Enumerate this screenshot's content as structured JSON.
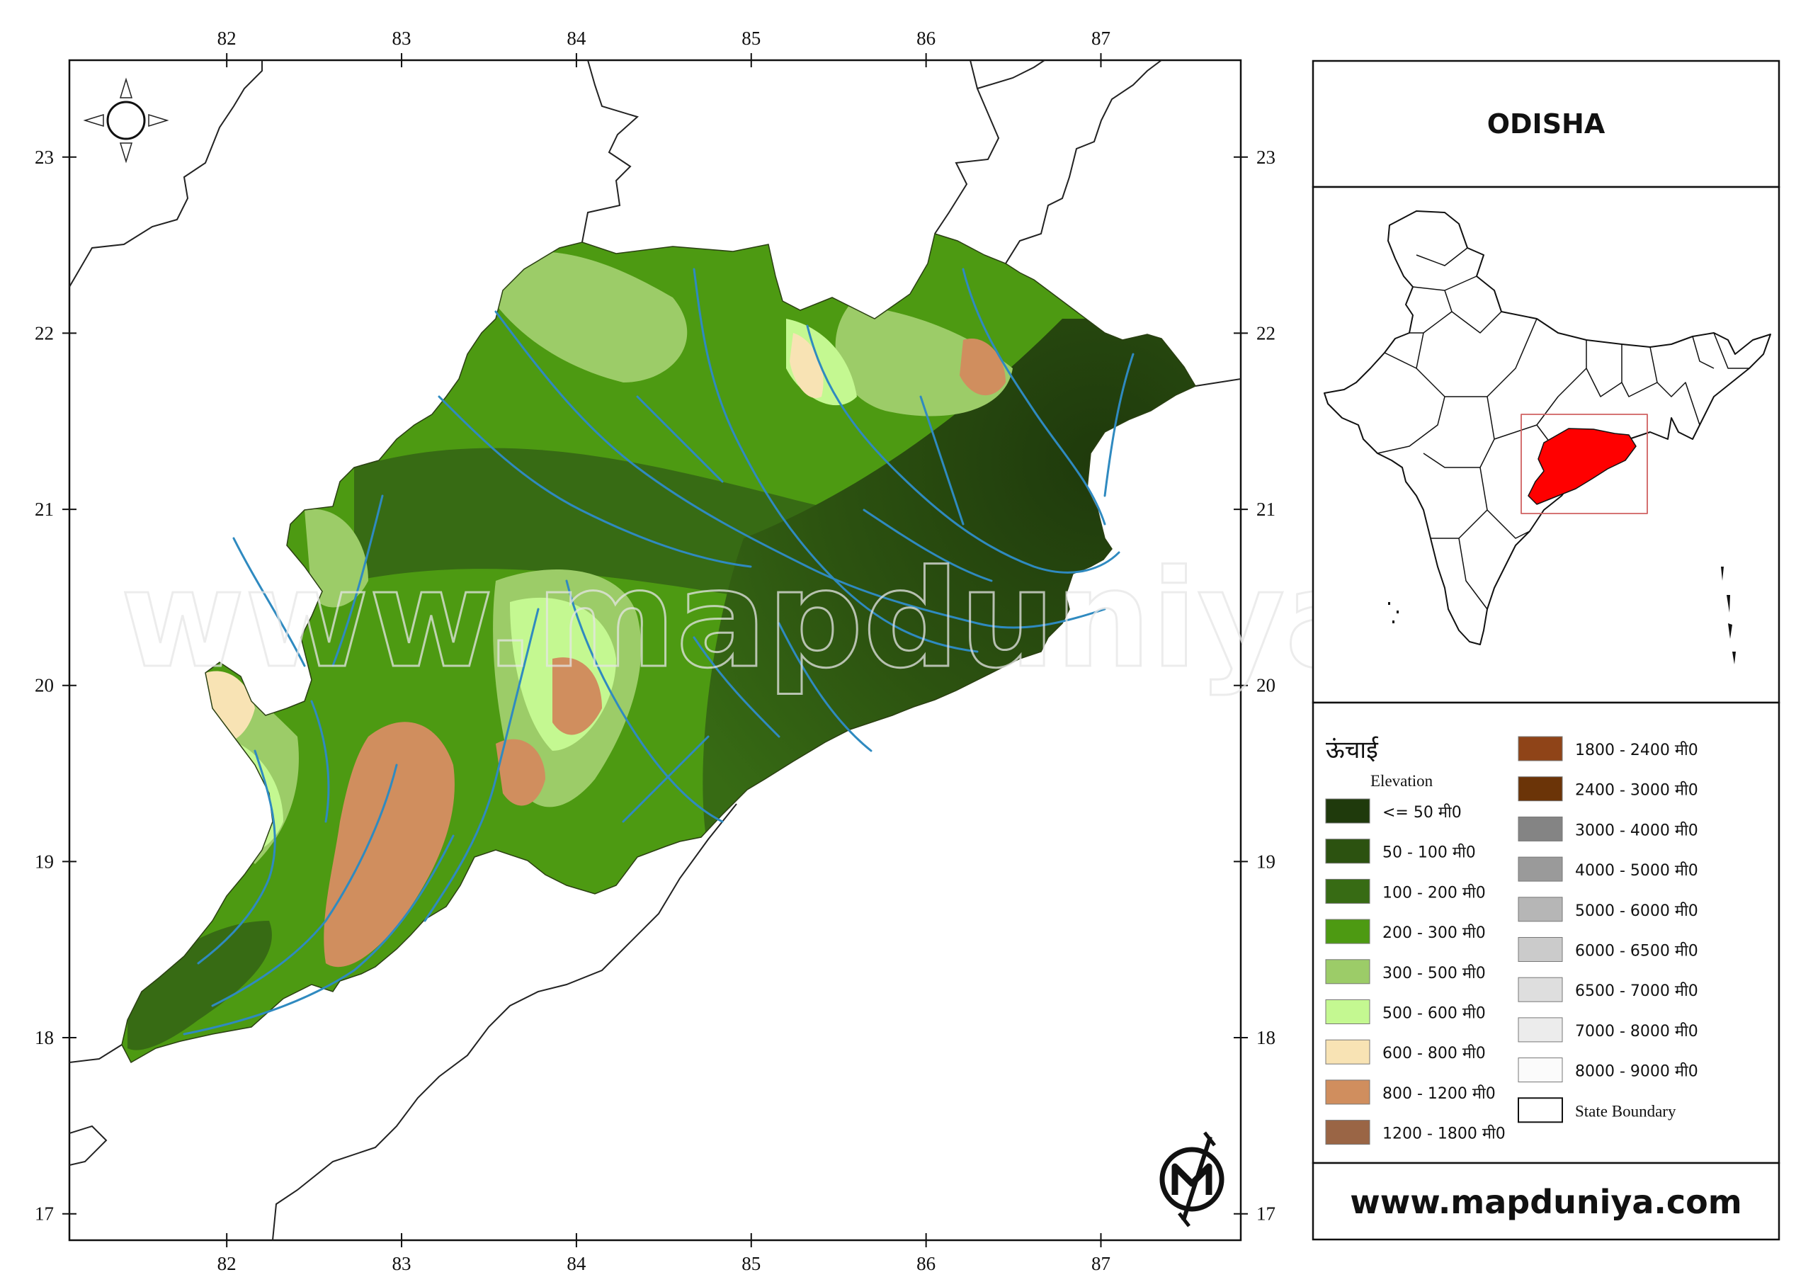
{
  "title": "ODISHA",
  "website": "www.mapduniya.com",
  "watermark": "www.mapduniya.com",
  "map": {
    "lon_ticks": [
      "82",
      "83",
      "84",
      "85",
      "86",
      "87"
    ],
    "lat_ticks": [
      "23",
      "22",
      "21",
      "20",
      "19",
      "18",
      "17"
    ],
    "lon_range": [
      81.1,
      87.8
    ],
    "lat_range": [
      16.85,
      23.55
    ],
    "river_color": "#2f8ac0",
    "state_highlight_color": "#ff0000"
  },
  "legend": {
    "title_hindi": "ऊंचाई",
    "subtitle": "Elevation",
    "items": [
      {
        "label": "<= 50 मी0",
        "color": "#1f3a0c"
      },
      {
        "label": "50 - 100 मी0",
        "color": "#2c5210"
      },
      {
        "label": "100 - 200 मी0",
        "color": "#376b14"
      },
      {
        "label": "200 - 300 मी0",
        "color": "#4d9a12"
      },
      {
        "label": "300 - 500 मी0",
        "color": "#9ccc68"
      },
      {
        "label": "500 - 600 मी0",
        "color": "#c4f891"
      },
      {
        "label": "600 - 800 मी0",
        "color": "#f8e3b4"
      },
      {
        "label": "800 - 1200 मी0",
        "color": "#d08e5e"
      },
      {
        "label": "1200 - 1800 मी0",
        "color": "#9a6545"
      },
      {
        "label": "1800 - 2400 मी0",
        "color": "#8f4418"
      },
      {
        "label": "2400 - 3000 मी0",
        "color": "#6b3408"
      },
      {
        "label": "3000 - 4000 मी0",
        "color": "#848484"
      },
      {
        "label": "4000 - 5000 मी0",
        "color": "#9a9a9a"
      },
      {
        "label": "5000 - 6000 मी0",
        "color": "#b6b6b6"
      },
      {
        "label": "6000 - 6500 मी0",
        "color": "#cbcbcb"
      },
      {
        "label": "6500 - 7000 मी0",
        "color": "#dedede"
      },
      {
        "label": "7000 - 8000 मी0",
        "color": "#ececec"
      },
      {
        "label": "8000 - 9000 मी0",
        "color": "#fbfbfb"
      },
      {
        "label": "State Boundary",
        "color": "#ffffff"
      }
    ]
  }
}
